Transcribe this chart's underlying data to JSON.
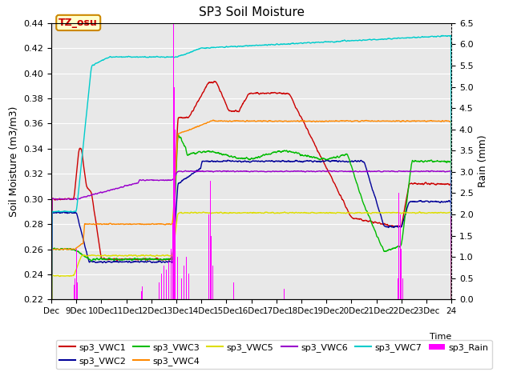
{
  "title": "SP3 Soil Moisture",
  "ylabel_left": "Soil Moisture (m3/m3)",
  "ylabel_right": "Rain (mm)",
  "xlabel": "Time",
  "ylim_left": [
    0.22,
    0.44
  ],
  "ylim_right": [
    0.0,
    6.5
  ],
  "yticks_left": [
    0.22,
    0.24,
    0.26,
    0.28,
    0.3,
    0.32,
    0.34,
    0.36,
    0.38,
    0.4,
    0.42,
    0.44
  ],
  "yticks_right": [
    0.0,
    0.5,
    1.0,
    1.5,
    2.0,
    2.5,
    3.0,
    3.5,
    4.0,
    4.5,
    5.0,
    5.5,
    6.0,
    6.5
  ],
  "colors": {
    "VWC1": "#cc0000",
    "VWC2": "#000099",
    "VWC3": "#00bb00",
    "VWC4": "#ff8800",
    "VWC5": "#dddd00",
    "VWC6": "#9900cc",
    "VWC7": "#00cccc",
    "Rain": "#ff00ff"
  },
  "annotation_text": "TZ_osu",
  "annotation_color": "#cc0000",
  "annotation_bg": "#ffffcc",
  "annotation_border": "#cc8800",
  "background_gray": "#e8e8e8",
  "grid_color": "#ffffff"
}
